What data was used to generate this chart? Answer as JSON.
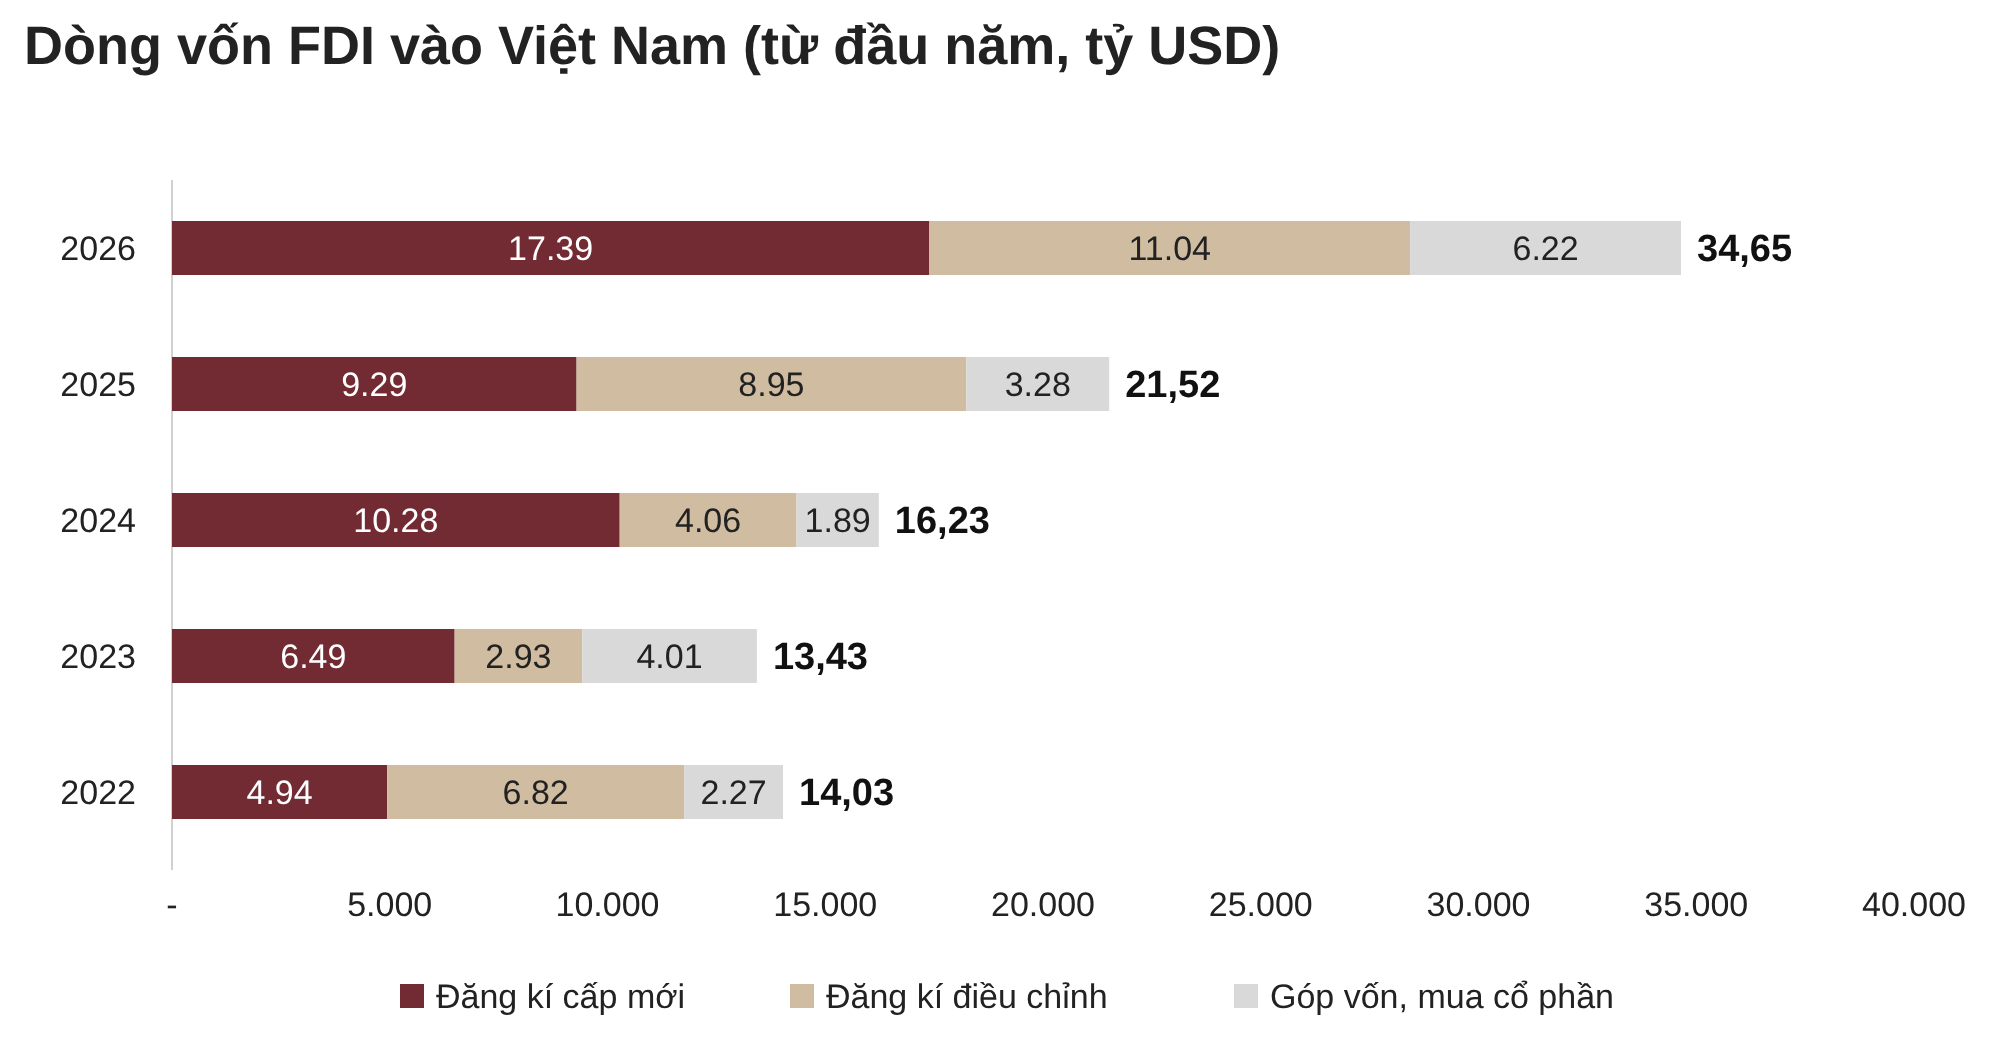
{
  "chart_data": {
    "type": "bar",
    "title": "Dòng vốn FDI vào Việt Nam (từ đầu năm, tỷ USD)",
    "orientation": "horizontal",
    "stacked": true,
    "categories": [
      "2026",
      "2025",
      "2024",
      "2023",
      "2022"
    ],
    "series": [
      {
        "name": "Đăng kí cấp mới",
        "color": "#722a33",
        "values": [
          17.39,
          9.29,
          10.28,
          6.49,
          4.94
        ]
      },
      {
        "name": "Đăng kí điều chỉnh",
        "color": "#d0bca0",
        "values": [
          11.04,
          8.95,
          4.06,
          2.93,
          6.82
        ]
      },
      {
        "name": "Góp vốn, mua cổ phần",
        "color": "#d9d9d9",
        "values": [
          6.22,
          3.28,
          1.89,
          4.01,
          2.27
        ]
      }
    ],
    "data_labels": true,
    "totals": [
      "34,65",
      "21,52",
      "16,23",
      "13,43",
      "14,03"
    ],
    "xlim": [
      0,
      40
    ],
    "xticks": [
      {
        "value": 0,
        "label": "-"
      },
      {
        "value": 5,
        "label": "5.000"
      },
      {
        "value": 10,
        "label": "10.000"
      },
      {
        "value": 15,
        "label": "15.000"
      },
      {
        "value": 20,
        "label": "20.000"
      },
      {
        "value": 25,
        "label": "25.000"
      },
      {
        "value": 30,
        "label": "30.000"
      },
      {
        "value": 35,
        "label": "35.000"
      },
      {
        "value": 40,
        "label": "40.000"
      }
    ],
    "legend": "bottom",
    "grid": false
  }
}
